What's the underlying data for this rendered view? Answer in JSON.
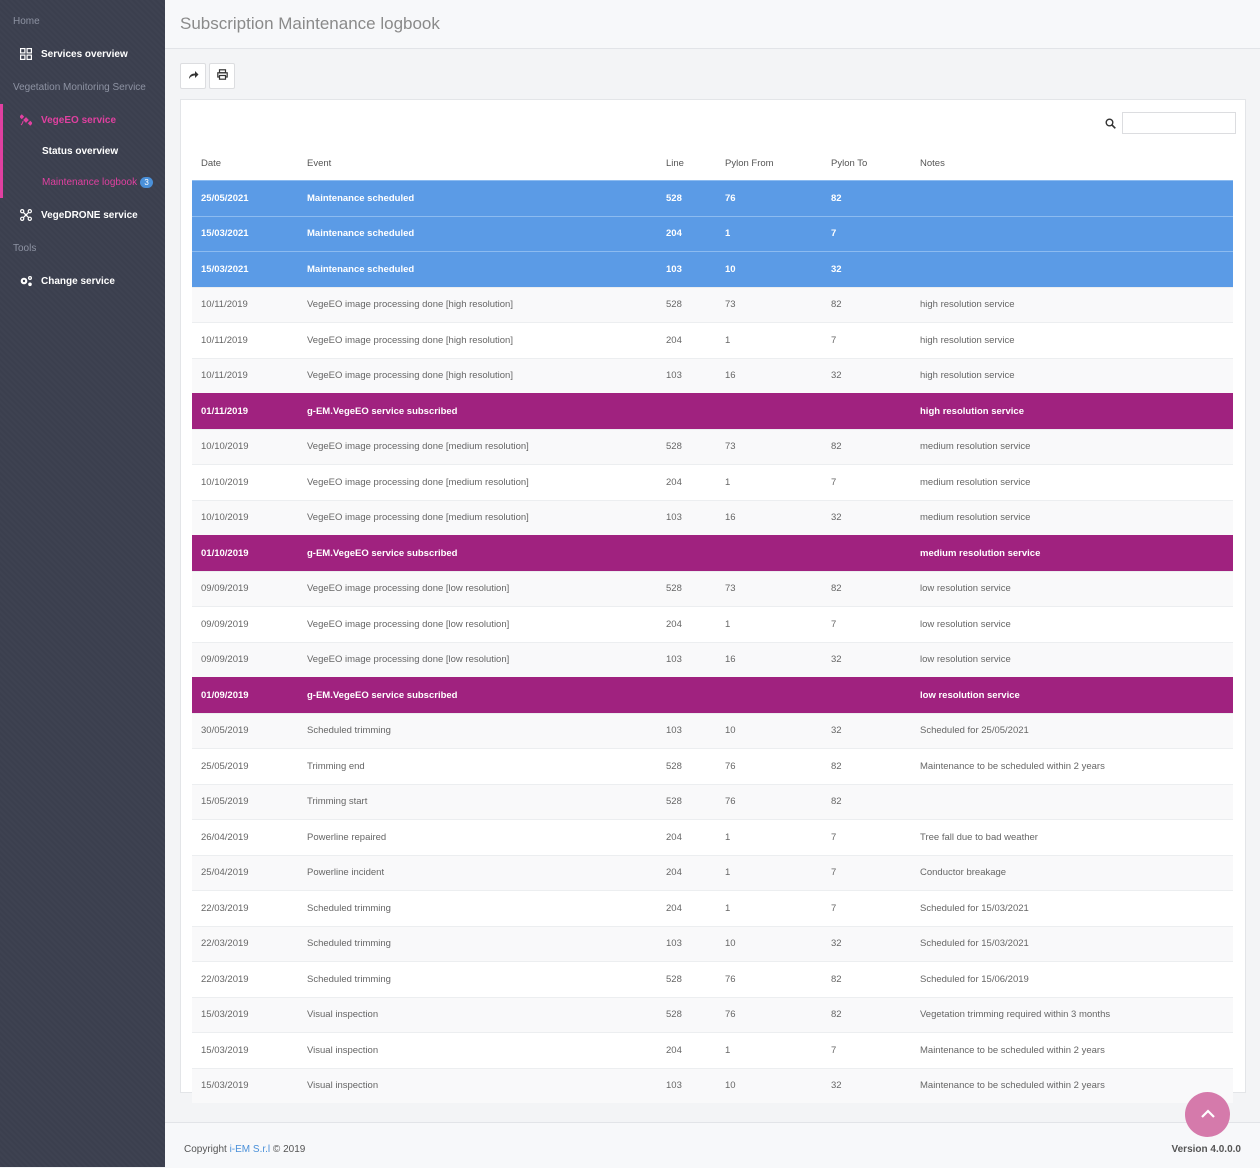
{
  "sidebar": {
    "home_heading": "Home",
    "services_overview": "Services overview",
    "vms_heading": "Vegetation Monitoring Service",
    "vegeeo_service": "VegeEO service",
    "status_overview": "Status overview",
    "maintenance_logbook": "Maintenance logbook",
    "maintenance_badge": "3",
    "vegedrone_service": "VegeDRONE service",
    "tools_heading": "Tools",
    "change_service": "Change service"
  },
  "header": {
    "title": "Subscription Maintenance logbook"
  },
  "search": {
    "placeholder": "",
    "value": ""
  },
  "table": {
    "headers": {
      "date": "Date",
      "event": "Event",
      "line": "Line",
      "pylon_from": "Pylon From",
      "pylon_to": "Pylon To",
      "notes": "Notes"
    },
    "rows": [
      {
        "date": "25/05/2021",
        "event": "Maintenance scheduled",
        "line": "528",
        "pylon_from": "76",
        "pylon_to": "82",
        "notes": "",
        "highlight": "blue"
      },
      {
        "date": "15/03/2021",
        "event": "Maintenance scheduled",
        "line": "204",
        "pylon_from": "1",
        "pylon_to": "7",
        "notes": "",
        "highlight": "blue"
      },
      {
        "date": "15/03/2021",
        "event": "Maintenance scheduled",
        "line": "103",
        "pylon_from": "10",
        "pylon_to": "32",
        "notes": "",
        "highlight": "blue"
      },
      {
        "date": "10/11/2019",
        "event": "VegeEO image processing done [high resolution]",
        "line": "528",
        "pylon_from": "73",
        "pylon_to": "82",
        "notes": "high resolution service",
        "highlight": ""
      },
      {
        "date": "10/11/2019",
        "event": "VegeEO image processing done [high resolution]",
        "line": "204",
        "pylon_from": "1",
        "pylon_to": "7",
        "notes": "high resolution service",
        "highlight": ""
      },
      {
        "date": "10/11/2019",
        "event": "VegeEO image processing done [high resolution]",
        "line": "103",
        "pylon_from": "16",
        "pylon_to": "32",
        "notes": "high resolution service",
        "highlight": ""
      },
      {
        "date": "01/11/2019",
        "event": "g-EM.VegeEO service subscribed",
        "line": "",
        "pylon_from": "",
        "pylon_to": "",
        "notes": "high resolution service",
        "highlight": "purple"
      },
      {
        "date": "10/10/2019",
        "event": "VegeEO image processing done [medium resolution]",
        "line": "528",
        "pylon_from": "73",
        "pylon_to": "82",
        "notes": "medium resolution service",
        "highlight": ""
      },
      {
        "date": "10/10/2019",
        "event": "VegeEO image processing done [medium resolution]",
        "line": "204",
        "pylon_from": "1",
        "pylon_to": "7",
        "notes": "medium resolution service",
        "highlight": ""
      },
      {
        "date": "10/10/2019",
        "event": "VegeEO image processing done [medium resolution]",
        "line": "103",
        "pylon_from": "16",
        "pylon_to": "32",
        "notes": "medium resolution service",
        "highlight": ""
      },
      {
        "date": "01/10/2019",
        "event": "g-EM.VegeEO service subscribed",
        "line": "",
        "pylon_from": "",
        "pylon_to": "",
        "notes": "medium resolution service",
        "highlight": "purple"
      },
      {
        "date": "09/09/2019",
        "event": "VegeEO image processing done [low resolution]",
        "line": "528",
        "pylon_from": "73",
        "pylon_to": "82",
        "notes": "low resolution service",
        "highlight": ""
      },
      {
        "date": "09/09/2019",
        "event": "VegeEO image processing done [low resolution]",
        "line": "204",
        "pylon_from": "1",
        "pylon_to": "7",
        "notes": "low resolution service",
        "highlight": ""
      },
      {
        "date": "09/09/2019",
        "event": "VegeEO image processing done [low resolution]",
        "line": "103",
        "pylon_from": "16",
        "pylon_to": "32",
        "notes": "low resolution service",
        "highlight": ""
      },
      {
        "date": "01/09/2019",
        "event": "g-EM.VegeEO service subscribed",
        "line": "",
        "pylon_from": "",
        "pylon_to": "",
        "notes": "low resolution service",
        "highlight": "purple"
      },
      {
        "date": "30/05/2019",
        "event": "Scheduled trimming",
        "line": "103",
        "pylon_from": "10",
        "pylon_to": "32",
        "notes": "Scheduled for 25/05/2021",
        "highlight": ""
      },
      {
        "date": "25/05/2019",
        "event": "Trimming end",
        "line": "528",
        "pylon_from": "76",
        "pylon_to": "82",
        "notes": "Maintenance to be scheduled within 2 years",
        "highlight": ""
      },
      {
        "date": "15/05/2019",
        "event": "Trimming start",
        "line": "528",
        "pylon_from": "76",
        "pylon_to": "82",
        "notes": "",
        "highlight": ""
      },
      {
        "date": "26/04/2019",
        "event": "Powerline repaired",
        "line": "204",
        "pylon_from": "1",
        "pylon_to": "7",
        "notes": "Tree fall due to bad weather",
        "highlight": ""
      },
      {
        "date": "25/04/2019",
        "event": "Powerline incident",
        "line": "204",
        "pylon_from": "1",
        "pylon_to": "7",
        "notes": "Conductor breakage",
        "highlight": ""
      },
      {
        "date": "22/03/2019",
        "event": "Scheduled trimming",
        "line": "204",
        "pylon_from": "1",
        "pylon_to": "7",
        "notes": "Scheduled for 15/03/2021",
        "highlight": ""
      },
      {
        "date": "22/03/2019",
        "event": "Scheduled trimming",
        "line": "103",
        "pylon_from": "10",
        "pylon_to": "32",
        "notes": "Scheduled for 15/03/2021",
        "highlight": ""
      },
      {
        "date": "22/03/2019",
        "event": "Scheduled trimming",
        "line": "528",
        "pylon_from": "76",
        "pylon_to": "82",
        "notes": "Scheduled for 15/06/2019",
        "highlight": ""
      },
      {
        "date": "15/03/2019",
        "event": "Visual inspection",
        "line": "528",
        "pylon_from": "76",
        "pylon_to": "82",
        "notes": "Vegetation trimming required within 3 months",
        "highlight": ""
      },
      {
        "date": "15/03/2019",
        "event": "Visual inspection",
        "line": "204",
        "pylon_from": "1",
        "pylon_to": "7",
        "notes": "Maintenance to be scheduled within 2 years",
        "highlight": ""
      },
      {
        "date": "15/03/2019",
        "event": "Visual inspection",
        "line": "103",
        "pylon_from": "10",
        "pylon_to": "32",
        "notes": "Maintenance to be scheduled within 2 years",
        "highlight": ""
      }
    ]
  },
  "footer": {
    "copyright_prefix": "Copyright ",
    "company": "i-EM S.r.l",
    "copyright_suffix": " © 2019",
    "version": "Version 4.0.0.0"
  },
  "colors": {
    "accent_pink": "#e040a0",
    "highlight_blue": "#5b9be6",
    "highlight_purple": "#a0227f",
    "badge_blue": "#4a90d9",
    "sidebar_bg": "#3b3f4e"
  },
  "icons": {
    "services_overview": "grid-icon",
    "vegeeo": "satellite-icon",
    "vegedrone": "drone-icon",
    "change_service": "gears-icon",
    "share": "share-icon",
    "print": "print-icon",
    "search": "search-icon",
    "scroll_top": "chevron-up-icon"
  }
}
